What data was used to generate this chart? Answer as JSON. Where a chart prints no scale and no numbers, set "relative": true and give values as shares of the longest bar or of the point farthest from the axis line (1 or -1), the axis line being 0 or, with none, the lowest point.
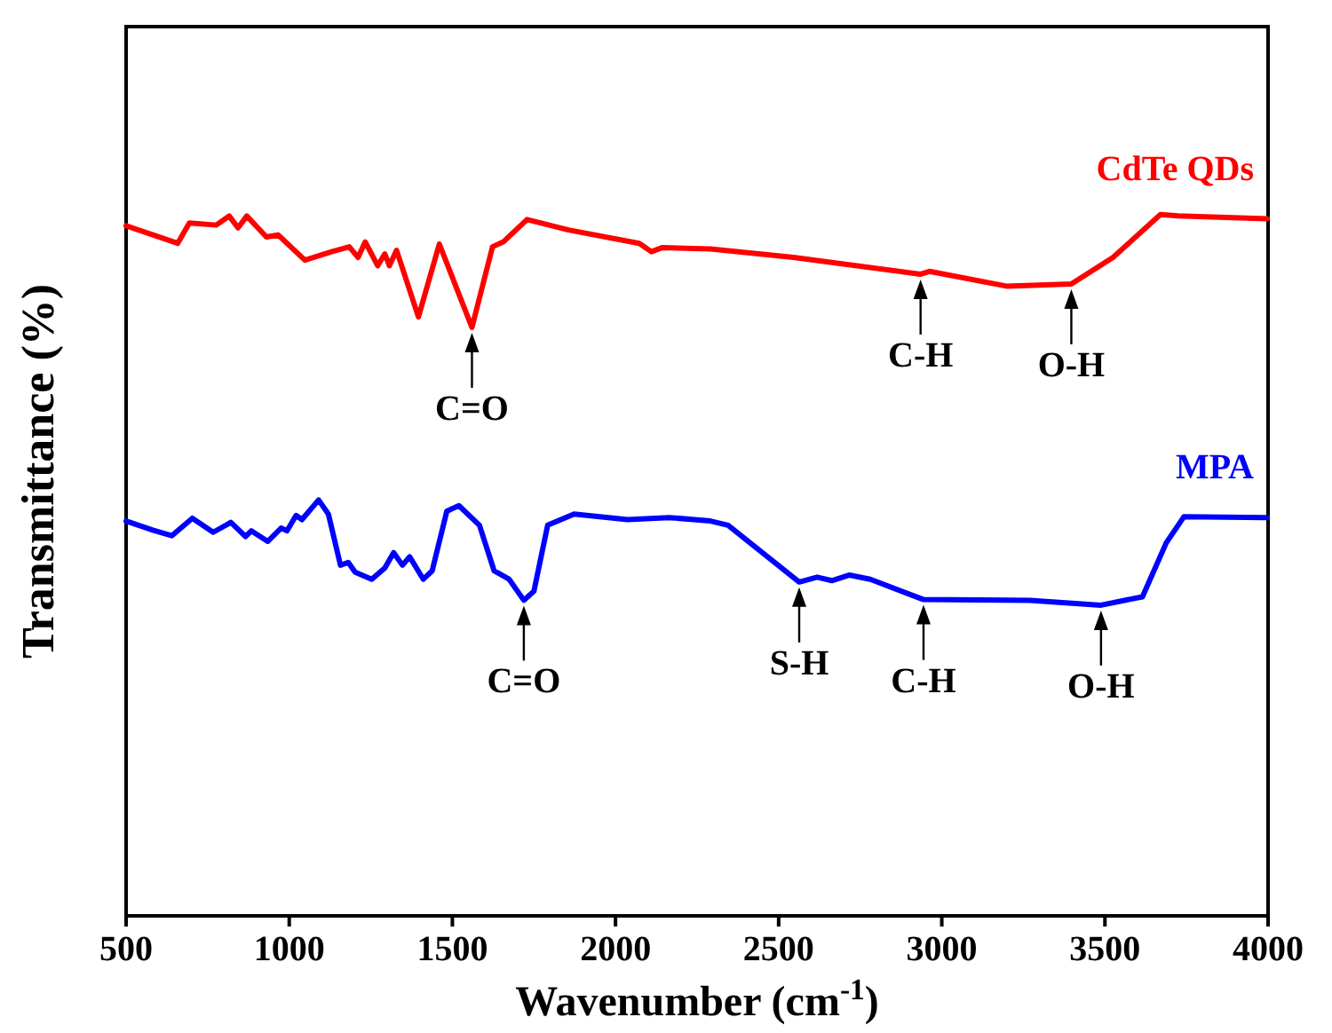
{
  "chart_data": {
    "type": "line",
    "relative": true,
    "xlabel": "Wavenumber (cm$^{-1}$)",
    "ylabel": "Transmittance (%)",
    "xlim": [
      500,
      4000
    ],
    "xticks": [
      500,
      1000,
      1500,
      2000,
      2500,
      3000,
      3500,
      4000
    ],
    "grid": false,
    "legend": false,
    "marker": "none",
    "line_style": "solid",
    "series": [
      {
        "name": "CdTe QDs",
        "color": "#ff0000",
        "x": [
          500,
          582,
          658,
          694,
          776,
          816,
          843,
          870,
          930,
          966,
          1048,
          1130,
          1184,
          1211,
          1233,
          1271,
          1293,
          1307,
          1329,
          1396,
          1460,
          1560,
          1623,
          1656,
          1729,
          1856,
          2073,
          2110,
          2144,
          2291,
          2545,
          2935,
          2962,
          3198,
          3397,
          3525,
          3670,
          3724,
          3997
        ],
        "values": [
          0.984,
          0.971,
          0.959,
          0.988,
          0.985,
          0.998,
          0.981,
          0.998,
          0.968,
          0.971,
          0.935,
          0.947,
          0.954,
          0.939,
          0.961,
          0.927,
          0.944,
          0.927,
          0.949,
          0.854,
          0.958,
          0.839,
          0.954,
          0.961,
          0.993,
          0.978,
          0.959,
          0.947,
          0.953,
          0.951,
          0.939,
          0.915,
          0.919,
          0.898,
          0.901,
          0.939,
          1.0,
          0.998,
          0.994
        ]
      },
      {
        "name": "MPA",
        "color": "#0000ff",
        "x": [
          500,
          582,
          640,
          703,
          767,
          821,
          866,
          884,
          934,
          975,
          993,
          1021,
          1039,
          1090,
          1120,
          1157,
          1181,
          1202,
          1253,
          1293,
          1320,
          1347,
          1369,
          1411,
          1438,
          1483,
          1520,
          1583,
          1628,
          1674,
          1719,
          1750,
          1792,
          1873,
          2037,
          2164,
          2291,
          2345,
          2563,
          2618,
          2663,
          2717,
          2781,
          2944,
          3270,
          3488,
          3615,
          3688,
          3742,
          3997
        ],
        "values": [
          0.563,
          0.55,
          0.542,
          0.567,
          0.547,
          0.561,
          0.541,
          0.549,
          0.534,
          0.553,
          0.549,
          0.571,
          0.565,
          0.593,
          0.573,
          0.5,
          0.504,
          0.49,
          0.48,
          0.496,
          0.518,
          0.5,
          0.512,
          0.48,
          0.492,
          0.577,
          0.585,
          0.557,
          0.492,
          0.48,
          0.45,
          0.463,
          0.557,
          0.573,
          0.565,
          0.568,
          0.563,
          0.557,
          0.476,
          0.483,
          0.478,
          0.486,
          0.48,
          0.451,
          0.45,
          0.443,
          0.455,
          0.532,
          0.569,
          0.568
        ]
      }
    ],
    "annotations": [
      {
        "text": "C=O",
        "x": 1560,
        "y": 0.839
      },
      {
        "text": "C-H",
        "x": 2935,
        "y": 0.915
      },
      {
        "text": "O-H",
        "x": 3397,
        "y": 0.901
      },
      {
        "text": "C=O",
        "x": 1719,
        "y": 0.45
      },
      {
        "text": "S-H",
        "x": 2563,
        "y": 0.476
      },
      {
        "text": "C-H",
        "x": 2944,
        "y": 0.451
      },
      {
        "text": "O-H",
        "x": 3488,
        "y": 0.443
      }
    ]
  }
}
